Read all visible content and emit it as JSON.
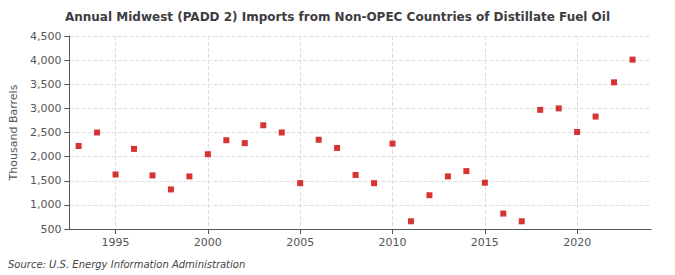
{
  "chart_data": {
    "type": "scatter",
    "title": "Annual Midwest (PADD 2) Imports from Non-OPEC Countries of Distillate Fuel Oil",
    "ylabel": "Thousand Barrels",
    "source": "Source: U.S. Energy Information Administration",
    "x": [
      1993,
      1994,
      1995,
      1996,
      1997,
      1998,
      1999,
      2000,
      2001,
      2002,
      2003,
      2004,
      2005,
      2006,
      2007,
      2008,
      2009,
      2010,
      2011,
      2012,
      2013,
      2014,
      2015,
      2016,
      2017,
      2018,
      2019,
      2020,
      2021,
      2022,
      2023
    ],
    "values": [
      2220,
      2500,
      1630,
      2160,
      1610,
      1320,
      1590,
      2050,
      2340,
      2280,
      2650,
      2500,
      1450,
      2350,
      2180,
      1620,
      1450,
      2270,
      660,
      1200,
      1590,
      1700,
      1460,
      820,
      660,
      2970,
      3000,
      2510,
      2830,
      3540,
      4010
    ],
    "color": "#cc0000",
    "marker": "square",
    "xlim": [
      1992.5,
      2024
    ],
    "xticks": [
      1995,
      2000,
      2005,
      2010,
      2015,
      2020
    ],
    "ylim": [
      500,
      4500
    ],
    "yticks": [
      500,
      {
        "value": 1000,
        "label": "1,000"
      },
      {
        "value": 1500,
        "label": "1,500"
      },
      {
        "value": 2000,
        "label": "2,000"
      },
      {
        "value": 2500,
        "label": "2,500"
      },
      {
        "value": 3000,
        "label": "3,000"
      },
      {
        "value": 3500,
        "label": "3,500"
      },
      {
        "value": 4000,
        "label": "4,000"
      },
      {
        "value": 4500,
        "label": "4,500"
      }
    ],
    "grid": true
  }
}
